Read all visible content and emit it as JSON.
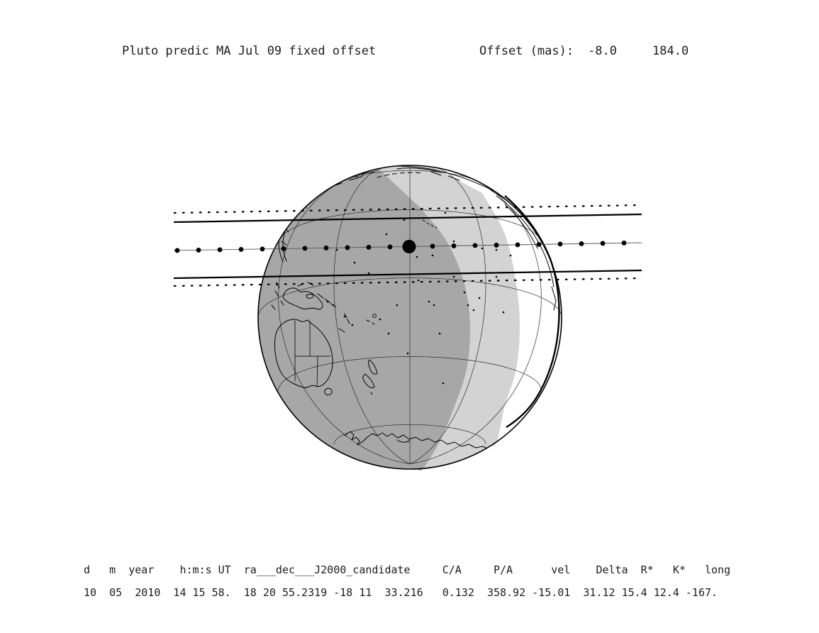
{
  "header": {
    "title": "Pluto predic MA Jul 09 fixed offset",
    "offset_label": "Offset (mas):",
    "offset_value_1": "-8.0",
    "offset_value_2": "184.0"
  },
  "event_table": {
    "header_line": "d   m  year    h:m:s UT  ra___dec___J2000_candidate     C/A     P/A      vel    Delta  R*   K*   long",
    "data_line": "10  05  2010  14 15 58.  18 20 55.2319 -18 11  33.216   0.132  358.92 -15.01  31.12 15.4 12.4 -167."
  },
  "map": {
    "colors": {
      "night_shade": "#a7a7a7",
      "twilight_shade": "#d3d3d3",
      "day": "#ffffff",
      "line": "#000000",
      "center_line": "#555555"
    },
    "elements": {
      "solid_lines": "shadow path limits",
      "dotted_lines": "path uncertainty limits",
      "dotted_track": "centerline with time-step dots",
      "large_dot": "closest-approach marker"
    }
  }
}
